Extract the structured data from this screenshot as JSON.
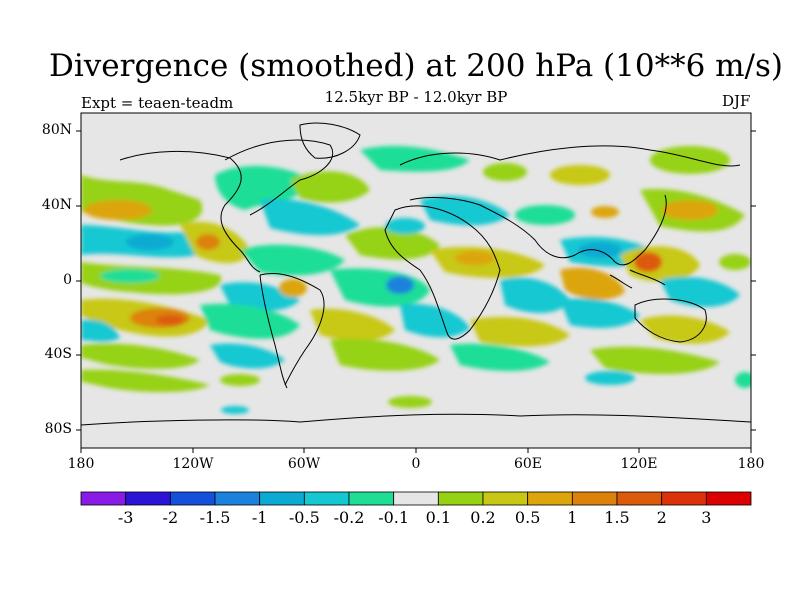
{
  "title": "Divergence (smoothed) at 200 hPa (10**6 m/s)",
  "subtitle": "12.5kyr BP - 12.0kyr BP",
  "experiment_label": "Expt = teaen-teadm",
  "season": "DJF",
  "axes": {
    "lat_labels": [
      "80N",
      "40N",
      "0",
      "40S",
      "80S"
    ],
    "lon_labels": [
      "180",
      "120W",
      "60W",
      "0",
      "60E",
      "120E",
      "180"
    ],
    "lat_range": [
      -90,
      90
    ],
    "lon_range": [
      -180,
      180
    ]
  },
  "colorbar": {
    "labels": [
      "-3",
      "-2",
      "-1.5",
      "-1",
      "-0.5",
      "-0.2",
      "-0.1",
      "0.1",
      "0.2",
      "0.5",
      "1",
      "1.5",
      "2",
      "3"
    ],
    "colors": [
      "#8a1ae6",
      "#2c14d6",
      "#1450dc",
      "#1a82dc",
      "#0aaad2",
      "#14c8d2",
      "#1ede96",
      "#e6e6e6",
      "#96d214",
      "#c8c814",
      "#dca50a",
      "#dc820a",
      "#dc5a0a",
      "#dc320a",
      "#dc0000"
    ]
  },
  "colors": {
    "ocean_neutral": "#e6e6e6",
    "coastline": "#000000"
  }
}
